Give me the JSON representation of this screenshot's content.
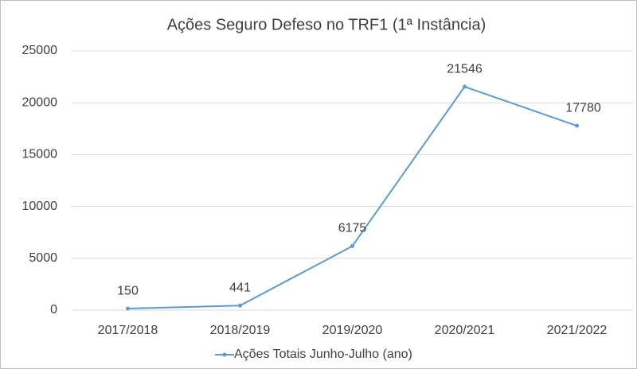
{
  "chart_data": {
    "type": "line",
    "title": "Ações Seguro Defeso no TRF1 (1ª Instância)",
    "categories": [
      "2017/2018",
      "2018/2019",
      "2019/2020",
      "2020/2021",
      "2021/2022"
    ],
    "series": [
      {
        "name": "Ações Totais Junho-Julho (ano)",
        "color": "#5b9bd5",
        "values": [
          150,
          441,
          6175,
          21546,
          17780
        ]
      }
    ],
    "ylim": [
      0,
      25000
    ],
    "yticks": [
      0,
      5000,
      10000,
      15000,
      20000,
      25000
    ],
    "grid": true,
    "legend": "bottom"
  }
}
